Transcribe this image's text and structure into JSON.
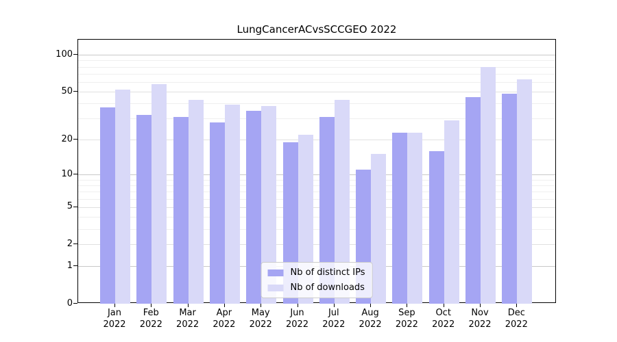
{
  "chart_data": {
    "type": "bar",
    "title": "LungCancerACvsSCCGEO 2022",
    "categories": [
      "Jan",
      "Feb",
      "Mar",
      "Apr",
      "May",
      "Jun",
      "Jul",
      "Aug",
      "Sep",
      "Oct",
      "Nov",
      "Dec"
    ],
    "x_tick_year": "2022",
    "series": [
      {
        "name": "Nb of distinct IPs",
        "key": "distinct-ips",
        "color": "#a5a5f3",
        "values": [
          37,
          32,
          31,
          28,
          35,
          19,
          31,
          11,
          23,
          16,
          45,
          48
        ]
      },
      {
        "name": "Nb of downloads",
        "key": "downloads",
        "color": "#d9d9f8",
        "values": [
          52,
          58,
          43,
          39,
          38,
          22,
          43,
          15,
          23,
          29,
          80,
          63
        ]
      }
    ],
    "y_axis": {
      "scale": "log1p",
      "tick_labels": [
        0,
        1,
        2,
        5,
        10,
        20,
        50,
        100
      ],
      "minor_gridlines": [
        3,
        4,
        6,
        7,
        8,
        9,
        30,
        40,
        60,
        70,
        80,
        90
      ],
      "ylim": [
        0,
        133
      ]
    },
    "legend_position": "bottom-center",
    "grid": true,
    "colors": {
      "grid_power10": "#c8c8c8",
      "grid_labeled": "#e0e0e0",
      "grid_minor": "#efefef",
      "axis": "#000000",
      "text": "#000000"
    }
  }
}
